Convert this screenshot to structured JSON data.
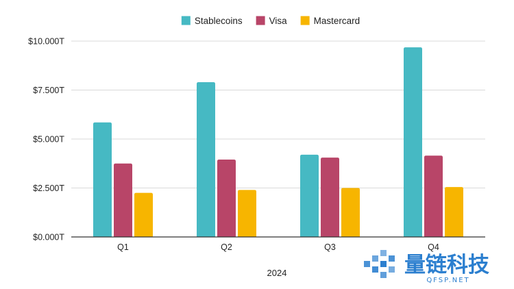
{
  "chart_data": {
    "type": "bar",
    "title": "",
    "xlabel": "2024",
    "ylabel": "",
    "categories": [
      "Q1",
      "Q2",
      "Q3",
      "Q4"
    ],
    "series": [
      {
        "name": "Stablecoins",
        "color": "#46b9c3",
        "values": [
          5.85,
          7.9,
          4.2,
          9.68
        ]
      },
      {
        "name": "Visa",
        "color": "#b84568",
        "values": [
          3.75,
          3.95,
          4.05,
          4.15
        ]
      },
      {
        "name": "Mastercard",
        "color": "#f7b500",
        "values": [
          2.25,
          2.4,
          2.5,
          2.55
        ]
      }
    ],
    "yticks": [
      0,
      2.5,
      5,
      7.5,
      10
    ],
    "ytick_labels": [
      "$0.000T",
      "$2.500T",
      "$5.000T",
      "$7.500T",
      "$10.000T"
    ],
    "ylim": [
      0,
      10
    ],
    "grid": true,
    "legend_position": "top-center"
  },
  "watermark": {
    "text_cn": "量链科技",
    "url": "QFSP.NET",
    "color": "#2c7fcf"
  }
}
